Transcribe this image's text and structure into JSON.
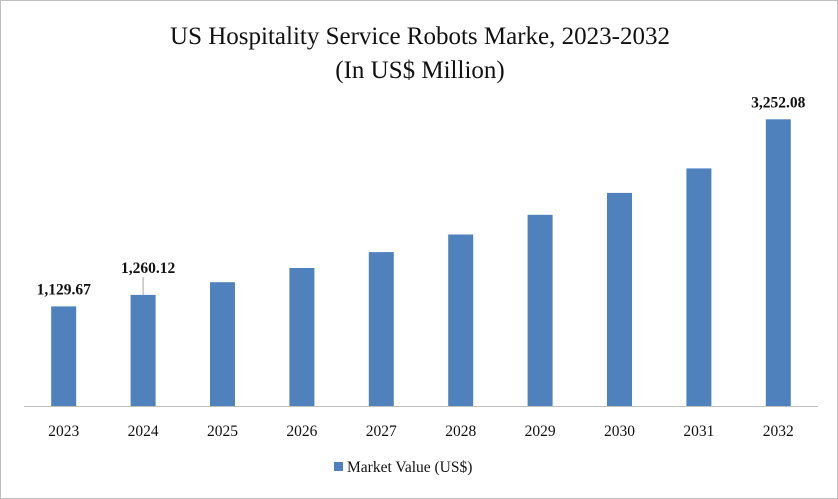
{
  "chart_data": {
    "type": "bar",
    "title": "US Hospitality Service Robots Marke, 2023-2032",
    "subtitle": "(In US$ Million)",
    "xlabel": "",
    "ylabel": "",
    "categories": [
      "2023",
      "2024",
      "2025",
      "2026",
      "2027",
      "2028",
      "2029",
      "2030",
      "2031",
      "2032"
    ],
    "series": [
      {
        "name": "Market Value (US$)",
        "values": [
          1129.67,
          1260.12,
          1404,
          1565,
          1745,
          1945,
          2168,
          2417,
          2695,
          3252.08
        ],
        "color": "#4f81bd"
      }
    ],
    "data_labels": [
      {
        "index": 0,
        "text": "1,129.67"
      },
      {
        "index": 1,
        "text": "1,260.12"
      },
      {
        "index": 9,
        "text": "3,252.08"
      }
    ],
    "ylim": [
      0,
      3550
    ],
    "grid": false,
    "legend_position": "bottom"
  }
}
